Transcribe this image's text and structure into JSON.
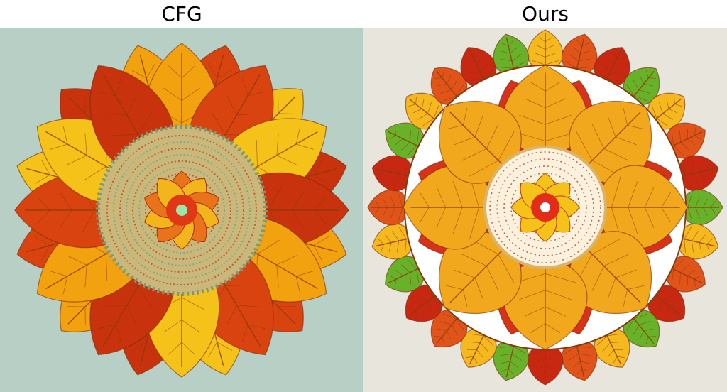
{
  "panels": {
    "left": {
      "title": "CFG",
      "background": "#b7cfc4",
      "leaf_colors": [
        "#f2a20e",
        "#d9430f",
        "#f5c21a",
        "#c8320c"
      ],
      "center_color": "#e03816",
      "center_dot_color": "#9be6a8"
    },
    "right": {
      "title": "Ours",
      "background": "#e8e6dc",
      "ring_color": "#ffffff",
      "leaf_colors": [
        "#f5b81e",
        "#e0541a",
        "#c82812",
        "#68b22a"
      ],
      "center_color": "#e12d1a",
      "center_dot_color": "#ffffff"
    }
  }
}
